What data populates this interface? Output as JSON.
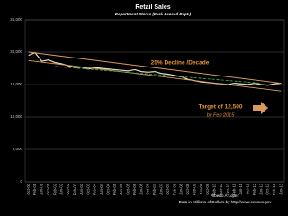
{
  "chart_data": {
    "type": "line",
    "title": "Retail Sales",
    "subtitle": "Department Stores (Excl. Leased Dept.)",
    "categories": [
      "Oct-00",
      "Feb-01",
      "Jun-01",
      "Oct-01",
      "Feb-02",
      "Jun-02",
      "Oct-02",
      "Feb-03",
      "Jun-03",
      "Oct-03",
      "Feb-04",
      "Jun-04",
      "Oct-04",
      "Feb-05",
      "Jun-05",
      "Oct-05",
      "Feb-06",
      "Jun-06",
      "Oct-06",
      "Feb-07",
      "Jun-07",
      "Oct-07",
      "Feb-08",
      "Jun-08",
      "Oct-08",
      "Feb-09",
      "Jun-09",
      "Oct-09",
      "Feb-10",
      "Jun-10",
      "Oct-10",
      "Feb-11",
      "Jun-11",
      "Oct-11",
      "Feb-12",
      "Jun-12",
      "Oct-12",
      "Feb-13",
      "Jun-13"
    ],
    "series": [
      {
        "color": "#e6dcc0",
        "values": [
          19500,
          19900,
          18600,
          18800,
          18400,
          18200,
          17900,
          17600,
          17700,
          17400,
          17600,
          17500,
          17400,
          17300,
          17200,
          17100,
          17300,
          17000,
          16900,
          17000,
          16700,
          16600,
          16400,
          16200,
          15800,
          15600,
          15400,
          15300,
          15200,
          15100,
          15000,
          15200,
          15100,
          15000,
          15200,
          15000,
          14900,
          15100,
          15200
        ]
      }
    ],
    "trend_lines": [
      {
        "color": "#d99a5a",
        "dash": false,
        "x": [
          "Oct-00",
          "Jun-13"
        ],
        "values": [
          20000,
          15200
        ]
      },
      {
        "color": "#d99a5a",
        "dash": false,
        "x": [
          "Oct-00",
          "Jun-13"
        ],
        "values": [
          18700,
          14000
        ]
      },
      {
        "color": "#3fa34d",
        "dash": true,
        "x": [
          "Feb-02",
          "Jun-12"
        ],
        "values": [
          17800,
          15200
        ]
      }
    ],
    "ylim": [
      0,
      25000
    ],
    "yticks": [
      0,
      {
        "value": 5000,
        "label": "5,000"
      },
      {
        "value": 10000,
        "label": "10,000"
      },
      {
        "value": 15000,
        "label": "15,000"
      },
      {
        "value": 20000,
        "label": "20,000"
      },
      {
        "value": 25000,
        "label": "25,000"
      }
    ],
    "grid": true,
    "annotations": [
      "25% Decline /Decade",
      "Target of 12,500",
      "by Feb 2015",
      "Alberto A Lopez",
      "Data in Millions of Dollars by http://www.census.gov"
    ]
  }
}
